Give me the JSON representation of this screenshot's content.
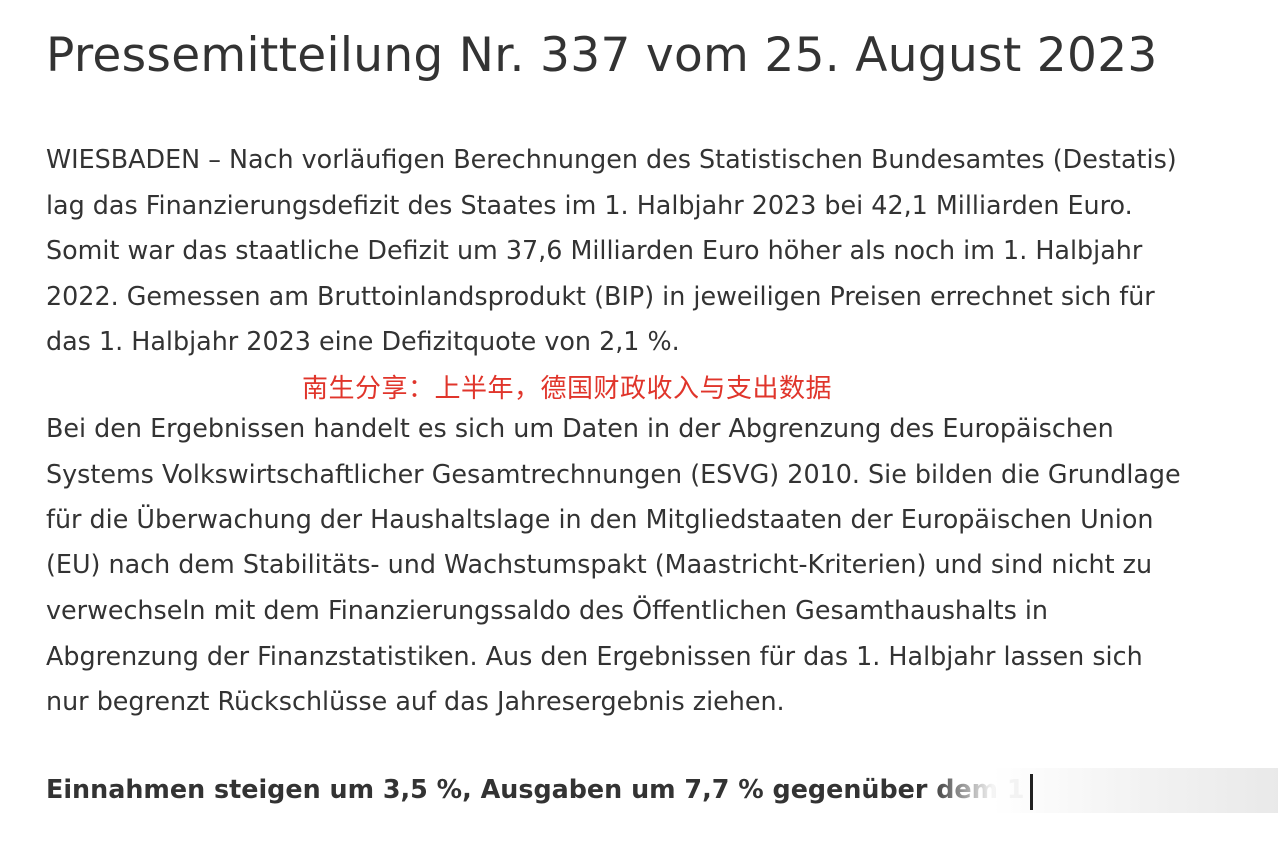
{
  "page_title": "Pressemitteilung Nr. 337 vom 25. August 2023",
  "paragraph_1": [
    "WIESBADEN – Nach vorläufigen Berechnungen des Statistischen Bundesamtes (Destatis)",
    "lag das Finanzierungsdefizit des Staates im 1. Halbjahr 2023 bei 42,1 Milliarden Euro.",
    "Somit war das staatliche Defizit um 37,6 Milliarden Euro höher als noch im 1. Halbjahr",
    "2022. Gemessen am Bruttoinlandsprodukt (BIP) in jeweiligen Preisen errechnet sich für",
    "das 1. Halbjahr 2023 eine Defizitquote von 2,1 %."
  ],
  "watermark_text": "南生分享：上半年，德国财政收入与支出数据",
  "paragraph_2": [
    "Bei den Ergebnissen handelt es sich um Daten in der Abgrenzung des Europäischen",
    "Systems Volkswirtschaftlicher Gesamtrechnungen (ESVG) 2010. Sie bilden die Grundlage",
    "für die Überwachung der Haushaltslage in den Mitgliedstaaten der Europäischen Union",
    "(EU) nach dem Stabilitäts- und Wachstumspakt (Maastricht-Kriterien) und sind nicht zu",
    "verwechseln mit dem Finanzierungssaldo des Öffentlichen Gesamthaushalts in",
    "Abgrenzung der Finanzstatistiken. Aus den Ergebnissen für das 1. Halbjahr lassen sich",
    "nur begrenzt Rückschlüsse auf das Jahresergebnis ziehen."
  ],
  "subheading": "Einnahmen steigen um 3,5 %, Ausgaben um 7,7 % gegenüber dem 1"
}
